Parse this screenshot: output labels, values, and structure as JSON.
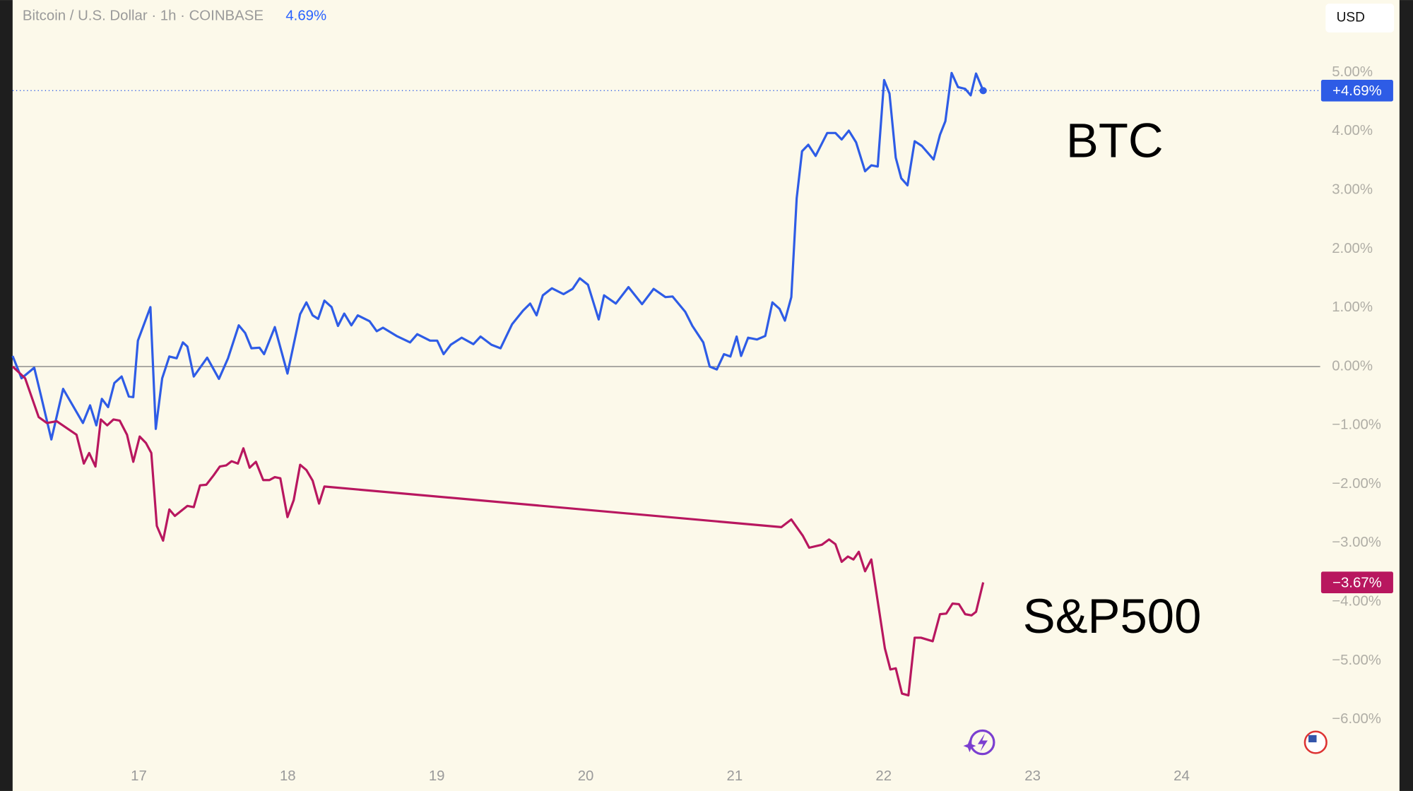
{
  "chart_data": {
    "type": "line",
    "title": "Bitcoin / U.S. Dollar · 1h · COINBASE",
    "change": "4.69%",
    "currency": "USD",
    "xlim": [
      16.153,
      24.93
    ],
    "xticks": [
      17,
      18,
      19,
      20,
      21,
      22,
      23,
      24
    ],
    "ylim": [
      -6.71,
      6.23
    ],
    "yticks": [
      {
        "value": 5,
        "label": "5.00%"
      },
      {
        "value": 4,
        "label": "4.00%"
      },
      {
        "value": 3,
        "label": "3.00%"
      },
      {
        "value": 2,
        "label": "2.00%"
      },
      {
        "value": 1,
        "label": "1.00%"
      },
      {
        "value": 0,
        "label": "0.00%"
      },
      {
        "value": -1,
        "label": "−1.00%"
      },
      {
        "value": -2,
        "label": "−2.00%"
      },
      {
        "value": -3,
        "label": "−3.00%"
      },
      {
        "value": -4,
        "label": "−4.00%"
      },
      {
        "value": -5,
        "label": "−5.00%"
      },
      {
        "value": -6,
        "label": "−6.00%"
      }
    ],
    "baseline": 0,
    "series": [
      {
        "name": "BTC",
        "color": "#2e5ce6",
        "end_label": "+4.69%",
        "x": [
          16.153,
          16.213,
          16.298,
          16.34,
          16.413,
          16.492,
          16.625,
          16.673,
          16.715,
          16.752,
          16.794,
          16.836,
          16.885,
          16.933,
          16.963,
          16.994,
          17.078,
          17.114,
          17.157,
          17.205,
          17.254,
          17.296,
          17.326,
          17.369,
          17.459,
          17.538,
          17.599,
          17.671,
          17.714,
          17.756,
          17.81,
          17.841,
          17.913,
          17.998,
          18.083,
          18.125,
          18.167,
          18.204,
          18.246,
          18.294,
          18.337,
          18.379,
          18.427,
          18.47,
          18.549,
          18.597,
          18.639,
          18.73,
          18.821,
          18.869,
          18.955,
          19.003,
          19.046,
          19.094,
          19.167,
          19.246,
          19.294,
          19.367,
          19.428,
          19.506,
          19.579,
          19.627,
          19.67,
          19.712,
          19.773,
          19.851,
          19.912,
          19.96,
          20.015,
          20.087,
          20.123,
          20.202,
          20.287,
          20.378,
          20.456,
          20.535,
          20.583,
          20.668,
          20.716,
          20.789,
          20.832,
          20.88,
          20.928,
          20.971,
          21.013,
          21.043,
          21.09,
          21.15,
          21.205,
          21.253,
          21.301,
          21.337,
          21.38,
          21.416,
          21.452,
          21.494,
          21.543,
          21.621,
          21.676,
          21.718,
          21.766,
          21.815,
          21.875,
          21.917,
          21.96,
          22.003,
          22.039,
          22.081,
          22.118,
          22.16,
          22.208,
          22.256,
          22.335,
          22.378,
          22.414,
          22.456,
          22.499,
          22.547,
          22.584,
          22.62,
          22.668
        ],
        "values": [
          0.18,
          -0.2,
          -0.02,
          -0.46,
          -1.24,
          -0.38,
          -0.96,
          -0.66,
          -1.0,
          -0.55,
          -0.69,
          -0.28,
          -0.17,
          -0.51,
          -0.52,
          0.44,
          1.01,
          -1.06,
          -0.2,
          0.17,
          0.14,
          0.41,
          0.34,
          -0.17,
          0.15,
          -0.21,
          0.14,
          0.7,
          0.57,
          0.31,
          0.32,
          0.21,
          0.67,
          -0.12,
          0.89,
          1.09,
          0.87,
          0.81,
          1.12,
          1.01,
          0.69,
          0.9,
          0.7,
          0.87,
          0.77,
          0.6,
          0.66,
          0.52,
          0.41,
          0.55,
          0.44,
          0.44,
          0.21,
          0.37,
          0.49,
          0.38,
          0.51,
          0.37,
          0.31,
          0.72,
          0.95,
          1.07,
          0.87,
          1.21,
          1.33,
          1.23,
          1.32,
          1.5,
          1.39,
          0.8,
          1.21,
          1.07,
          1.35,
          1.06,
          1.32,
          1.18,
          1.19,
          0.93,
          0.69,
          0.41,
          0.0,
          -0.05,
          0.21,
          0.17,
          0.51,
          0.18,
          0.49,
          0.46,
          0.52,
          1.09,
          0.98,
          0.78,
          1.18,
          2.86,
          3.66,
          3.77,
          3.58,
          3.97,
          3.97,
          3.86,
          4.01,
          3.81,
          3.32,
          3.42,
          3.4,
          4.87,
          4.64,
          3.55,
          3.2,
          3.08,
          3.83,
          3.75,
          3.52,
          3.94,
          4.17,
          4.99,
          4.75,
          4.72,
          4.61,
          4.98,
          4.69
        ]
      },
      {
        "name": "S&P500",
        "color": "#b8175f",
        "end_label": "−3.67%",
        "x": [
          16.153,
          16.237,
          16.328,
          16.383,
          16.449,
          16.582,
          16.631,
          16.667,
          16.709,
          16.745,
          16.788,
          16.83,
          16.872,
          16.921,
          16.963,
          17.006,
          17.048,
          17.084,
          17.121,
          17.163,
          17.205,
          17.242,
          17.326,
          17.369,
          17.411,
          17.453,
          17.502,
          17.544,
          17.587,
          17.623,
          17.665,
          17.702,
          17.744,
          17.786,
          17.835,
          17.877,
          17.913,
          17.95,
          17.998,
          18.04,
          18.083,
          18.125,
          18.167,
          18.21,
          18.246,
          21.313,
          21.38,
          21.458,
          21.5,
          21.585,
          21.633,
          21.676,
          21.718,
          21.76,
          21.797,
          21.833,
          21.875,
          21.917,
          21.966,
          22.008,
          22.045,
          22.081,
          22.123,
          22.166,
          22.208,
          22.25,
          22.329,
          22.378,
          22.42,
          22.462,
          22.505,
          22.547,
          22.59,
          22.62,
          22.668
        ],
        "values": [
          0.0,
          -0.2,
          -0.86,
          -0.96,
          -0.93,
          -1.16,
          -1.65,
          -1.47,
          -1.7,
          -0.9,
          -1.0,
          -0.9,
          -0.92,
          -1.16,
          -1.62,
          -1.19,
          -1.3,
          -1.47,
          -2.71,
          -2.96,
          -2.43,
          -2.54,
          -2.37,
          -2.39,
          -2.02,
          -2.01,
          -1.85,
          -1.7,
          -1.68,
          -1.61,
          -1.65,
          -1.39,
          -1.72,
          -1.62,
          -1.93,
          -1.93,
          -1.88,
          -1.9,
          -2.56,
          -2.27,
          -1.67,
          -1.76,
          -1.94,
          -2.33,
          -2.04,
          -2.73,
          -2.6,
          -2.88,
          -3.08,
          -3.03,
          -2.94,
          -3.02,
          -3.32,
          -3.23,
          -3.28,
          -3.15,
          -3.48,
          -3.28,
          -4.09,
          -4.79,
          -5.15,
          -5.13,
          -5.56,
          -5.59,
          -4.61,
          -4.61,
          -4.67,
          -4.21,
          -4.2,
          -4.03,
          -4.04,
          -4.21,
          -4.23,
          -4.17,
          -3.67
        ]
      }
    ]
  }
}
